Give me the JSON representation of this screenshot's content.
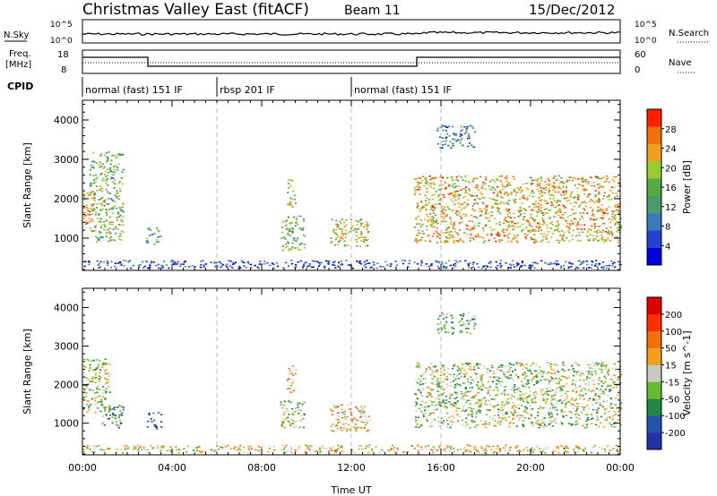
{
  "header": {
    "title": "Christmas Valley East (fitACF)",
    "beam": "Beam 11",
    "date": "15/Dec/2012"
  },
  "strips": {
    "nsky_label": "N.Sky",
    "nsky_ticks": [
      "10^5",
      "10^0"
    ],
    "nsearch_label": "N.Search",
    "nsearch_ticks": [
      "10^5",
      "10^0"
    ],
    "freq_label": "Freq.",
    "freq_unit": "[MHz]",
    "freq_ticks": [
      "18",
      "8"
    ],
    "nave_label": "Nave",
    "nave_ticks": [
      "60",
      "0"
    ],
    "cpid_label": "CPID",
    "cpid_segments": [
      {
        "label": "normal (fast) 151 IF",
        "start_h": 0,
        "end_h": 6
      },
      {
        "label": "rbsp 201 IF",
        "start_h": 6,
        "end_h": 12
      },
      {
        "label": "normal (fast) 151 IF",
        "start_h": 12,
        "end_h": 24
      }
    ]
  },
  "chart_data": [
    {
      "type": "heatmap",
      "name": "power-panel",
      "ylabel": "Slant Range [km]",
      "yticks": [
        "4000",
        "3000",
        "2000",
        "1000"
      ],
      "ylim": [
        180,
        4500
      ],
      "colorbar_label": "Power [dB]",
      "colorbar_ticks": [
        "28",
        "24",
        "20",
        "16",
        "12",
        "8",
        "4"
      ],
      "colors": [
        "#0000dd",
        "#2244cc",
        "#3a7ab8",
        "#4a9a6a",
        "#55aa44",
        "#99cc33",
        "#f0a020",
        "#f07010",
        "#ff2000"
      ],
      "regions": [
        {
          "h0": 0.0,
          "h1": 0.5,
          "r0": 1300,
          "r1": 2200,
          "level": 0.8
        },
        {
          "h0": 0.3,
          "h1": 1.8,
          "r0": 900,
          "r1": 3200,
          "level": 0.5
        },
        {
          "h0": 2.8,
          "h1": 3.5,
          "r0": 850,
          "r1": 1300,
          "level": 0.4
        },
        {
          "h0": 8.8,
          "h1": 9.9,
          "r0": 700,
          "r1": 1600,
          "level": 0.5
        },
        {
          "h0": 9.1,
          "h1": 9.5,
          "r0": 1800,
          "r1": 2500,
          "level": 0.6
        },
        {
          "h0": 11.0,
          "h1": 12.8,
          "r0": 800,
          "r1": 1500,
          "level": 0.6
        },
        {
          "h0": 14.8,
          "h1": 24.0,
          "r0": 900,
          "r1": 2600,
          "level": 0.7
        },
        {
          "h0": 15.8,
          "h1": 17.5,
          "r0": 3300,
          "r1": 3900,
          "level": 0.3
        },
        {
          "h0": 0.0,
          "h1": 24.0,
          "r0": 250,
          "r1": 450,
          "level": 0.2
        }
      ]
    },
    {
      "type": "heatmap",
      "name": "velocity-panel",
      "ylabel": "Slant Range [km]",
      "xlabel": "Time UT",
      "xticks": [
        "00:00",
        "04:00",
        "08:00",
        "12:00",
        "16:00",
        "20:00",
        "00:00"
      ],
      "xlim": [
        0,
        24
      ],
      "yticks": [
        "4000",
        "3000",
        "2000",
        "1000"
      ],
      "ylim": [
        180,
        4500
      ],
      "colorbar_label": "Velocity [m s^-1]",
      "colorbar_ticks": [
        "200",
        "100",
        "50",
        "15",
        "-15",
        "-50",
        "-100",
        "-200"
      ],
      "colors": [
        "#2233aa",
        "#2255aa",
        "#228844",
        "#66bb33",
        "#c8c8c0",
        "#f0a020",
        "#f07010",
        "#ff3000",
        "#dd0000"
      ],
      "regions": [
        {
          "h0": 0.0,
          "h1": 1.2,
          "r0": 1300,
          "r1": 2700,
          "level": 0.45
        },
        {
          "h0": 0.8,
          "h1": 1.8,
          "r0": 900,
          "r1": 1500,
          "level": 0.3
        },
        {
          "h0": 2.8,
          "h1": 3.5,
          "r0": 850,
          "r1": 1300,
          "level": 0.1
        },
        {
          "h0": 8.8,
          "h1": 9.9,
          "r0": 900,
          "r1": 1600,
          "level": 0.45
        },
        {
          "h0": 9.1,
          "h1": 9.5,
          "r0": 1800,
          "r1": 2500,
          "level": 0.6
        },
        {
          "h0": 11.0,
          "h1": 12.8,
          "r0": 800,
          "r1": 1500,
          "level": 0.6
        },
        {
          "h0": 14.8,
          "h1": 24.0,
          "r0": 900,
          "r1": 2600,
          "level": 0.45
        },
        {
          "h0": 15.8,
          "h1": 17.5,
          "r0": 3300,
          "r1": 3900,
          "level": 0.4
        },
        {
          "h0": 0.0,
          "h1": 24.0,
          "r0": 250,
          "r1": 450,
          "level": 0.55
        }
      ]
    }
  ]
}
